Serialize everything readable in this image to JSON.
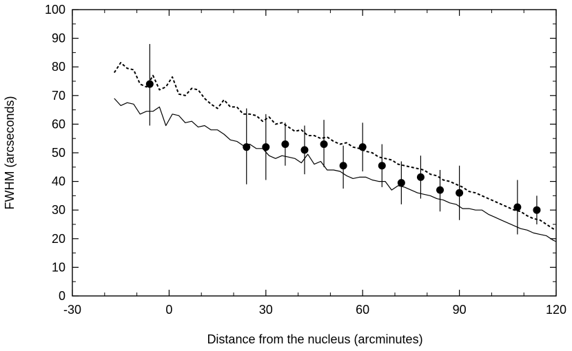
{
  "chart_data": {
    "type": "line",
    "xlabel": "Distance from the nucleus (arcminutes)",
    "ylabel": "FWHM (arcseconds)",
    "xlim": [
      -30,
      120
    ],
    "ylim": [
      0,
      100
    ],
    "xticks": [
      -30,
      0,
      30,
      60,
      90,
      120
    ],
    "yticks": [
      0,
      10,
      20,
      30,
      40,
      50,
      60,
      70,
      80,
      90,
      100
    ],
    "x_minor_step": 10,
    "y_minor_step": 5,
    "grid": false,
    "series": [
      {
        "style": "dashed",
        "color": "#000000",
        "x": [
          -17,
          -15,
          -13,
          -11,
          -9,
          -7,
          -5,
          -3,
          -1,
          1,
          3,
          5,
          7,
          9,
          11,
          13,
          15,
          17,
          19,
          21,
          23,
          25,
          27,
          29,
          31,
          33,
          35,
          37,
          39,
          41,
          43,
          45,
          47,
          49,
          51,
          53,
          55,
          57,
          59,
          61,
          63,
          65,
          67,
          69,
          71,
          73,
          75,
          77,
          79,
          81,
          83,
          85,
          87,
          89,
          91,
          93,
          95,
          97,
          99,
          101,
          103,
          105,
          107,
          109,
          111,
          113,
          115,
          117,
          119,
          120
        ],
        "y": [
          78,
          81.5,
          79.5,
          79,
          74,
          73,
          77,
          72,
          73,
          76.5,
          70.5,
          70,
          72.5,
          72,
          69,
          67,
          65.5,
          68.5,
          66,
          66,
          63.5,
          63.5,
          63,
          61,
          62.5,
          60,
          60.5,
          59,
          57.5,
          58,
          56,
          56,
          55,
          55.5,
          54,
          53,
          53.5,
          52,
          51.5,
          50.5,
          50,
          48.5,
          48,
          47.5,
          46,
          45.5,
          45,
          44.5,
          44,
          42.5,
          42,
          40.5,
          40,
          39,
          38,
          36.5,
          36,
          35,
          34,
          33,
          32,
          31,
          30,
          29.5,
          28,
          27,
          26.5,
          25,
          23.5,
          23
        ]
      },
      {
        "style": "solid",
        "color": "#000000",
        "x": [
          -17,
          -15,
          -13,
          -11,
          -9,
          -7,
          -5,
          -3,
          -1,
          1,
          3,
          5,
          7,
          9,
          11,
          13,
          15,
          17,
          19,
          21,
          23,
          25,
          27,
          29,
          31,
          33,
          35,
          37,
          39,
          41,
          43,
          45,
          47,
          49,
          51,
          53,
          55,
          57,
          59,
          61,
          63,
          65,
          67,
          69,
          71,
          73,
          75,
          77,
          79,
          81,
          83,
          85,
          87,
          89,
          91,
          93,
          95,
          97,
          99,
          101,
          103,
          105,
          107,
          109,
          111,
          113,
          115,
          117,
          119,
          120
        ],
        "y": [
          69,
          66.5,
          67.5,
          67,
          63.5,
          64.5,
          64.5,
          66,
          59.5,
          63.5,
          63,
          60.5,
          61,
          59,
          59.5,
          58,
          58,
          56.5,
          54.5,
          54,
          52.5,
          53,
          51.5,
          51.5,
          49,
          48,
          49,
          48.5,
          48,
          46.5,
          49.5,
          46,
          47,
          44,
          44,
          43.5,
          42,
          41,
          41.5,
          41.5,
          40.5,
          40,
          40,
          37,
          38.5,
          38,
          37,
          36,
          35.5,
          35,
          34,
          33.5,
          32.5,
          32,
          30.5,
          30.5,
          30,
          30,
          28.5,
          27.5,
          26.5,
          25.5,
          24.5,
          23.5,
          23,
          22,
          21.5,
          21,
          19.5,
          19
        ]
      },
      {
        "style": "points",
        "color": "#000000",
        "x": [
          -6,
          24,
          30,
          36,
          42,
          48,
          54,
          60,
          66,
          72,
          78,
          84,
          90,
          108,
          114
        ],
        "y": [
          74,
          52,
          52,
          53,
          51,
          53,
          45.5,
          52,
          45.5,
          39.5,
          41.5,
          37,
          36,
          31,
          30
        ],
        "err_low": [
          59.5,
          39,
          40.5,
          45.5,
          42.5,
          45,
          37.5,
          43.5,
          38,
          32,
          34,
          29.5,
          26.5,
          21.5,
          25
        ],
        "err_high": [
          88,
          65.5,
          63.5,
          60.5,
          59.5,
          61.5,
          52.5,
          60.5,
          53,
          47,
          49,
          44,
          45.5,
          40.5,
          35
        ]
      }
    ]
  }
}
